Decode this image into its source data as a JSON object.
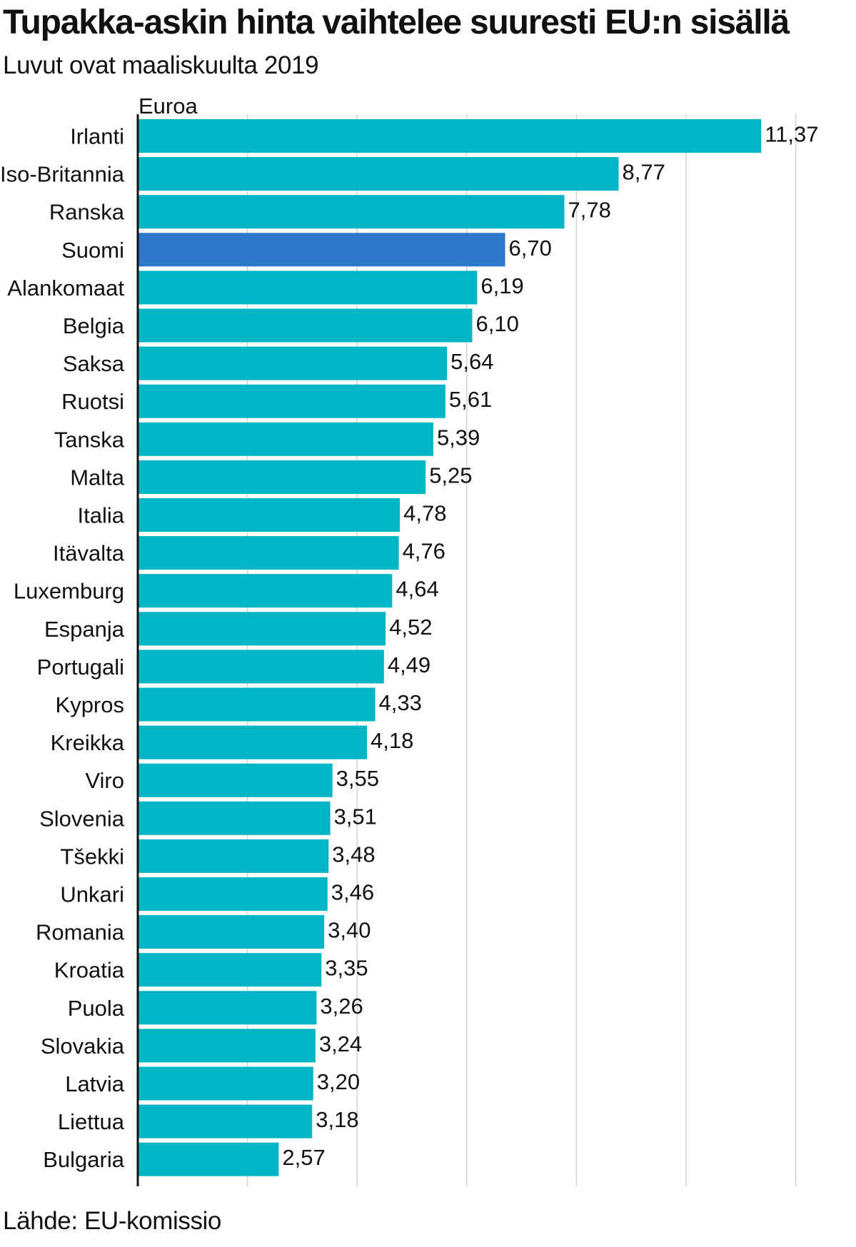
{
  "chart_data": {
    "type": "bar",
    "orientation": "horizontal",
    "title": "Tupakka-askin hinta vaihtelee suuresti EU:n sisällä",
    "subtitle": "Luvut ovat maaliskuulta 2019",
    "unit_label": "Euroa",
    "source": "Lähde: EU-komissio",
    "xlim": [
      0,
      12
    ],
    "grid": true,
    "bar_color": "#00b5c6",
    "highlight_color": "#2e78cc",
    "highlight_category": "Suomi",
    "categories": [
      "Irlanti",
      "Iso-Britannia",
      "Ranska",
      "Suomi",
      "Alankomaat",
      "Belgia",
      "Saksa",
      "Ruotsi",
      "Tanska",
      "Malta",
      "Italia",
      "Itävalta",
      "Luxemburg",
      "Espanja",
      "Portugali",
      "Kypros",
      "Kreikka",
      "Viro",
      "Slovenia",
      "Tšekki",
      "Unkari",
      "Romania",
      "Kroatia",
      "Puola",
      "Slovakia",
      "Latvia",
      "Liettua",
      "Bulgaria"
    ],
    "values": [
      11.37,
      8.77,
      7.78,
      6.7,
      6.19,
      6.1,
      5.64,
      5.61,
      5.39,
      5.25,
      4.78,
      4.76,
      4.64,
      4.52,
      4.49,
      4.33,
      4.18,
      3.55,
      3.51,
      3.48,
      3.46,
      3.4,
      3.35,
      3.26,
      3.24,
      3.2,
      3.18,
      2.57
    ],
    "value_labels": [
      "11,37",
      "8,77",
      "7,78",
      "6,70",
      "6,19",
      "6,10",
      "5,64",
      "5,61",
      "5,39",
      "5,25",
      "4,78",
      "4,76",
      "4,64",
      "4,52",
      "4,49",
      "4,33",
      "4,18",
      "3,55",
      "3,51",
      "3,48",
      "3,46",
      "3,40",
      "3,35",
      "3,26",
      "3,24",
      "3,20",
      "3,18",
      "2,57"
    ]
  }
}
